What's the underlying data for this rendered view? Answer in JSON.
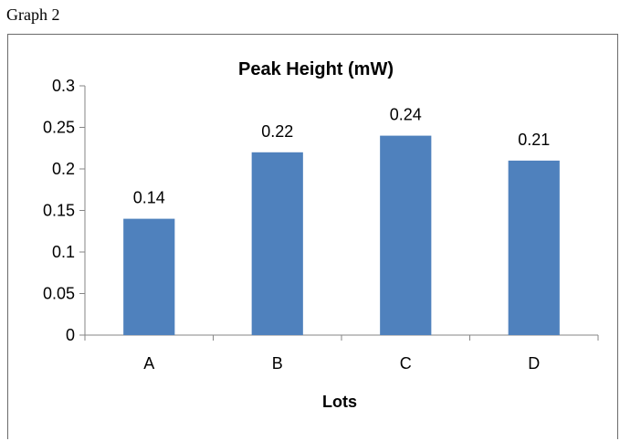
{
  "caption": "Graph 2",
  "chart_data": {
    "type": "bar",
    "title": "Peak Height (mW)",
    "xlabel": "Lots",
    "ylabel": "",
    "categories": [
      "A",
      "B",
      "C",
      "D"
    ],
    "values": [
      0.14,
      0.22,
      0.24,
      0.21
    ],
    "data_labels": [
      "0.14",
      "0.22",
      "0.24",
      "0.21"
    ],
    "ylim": [
      0,
      0.3
    ],
    "yticks": [
      "0",
      "0.05",
      "0.1",
      "0.15",
      "0.2",
      "0.25",
      "0.3"
    ],
    "bar_color": "#4f81bd",
    "grid": false,
    "legend": "none"
  }
}
